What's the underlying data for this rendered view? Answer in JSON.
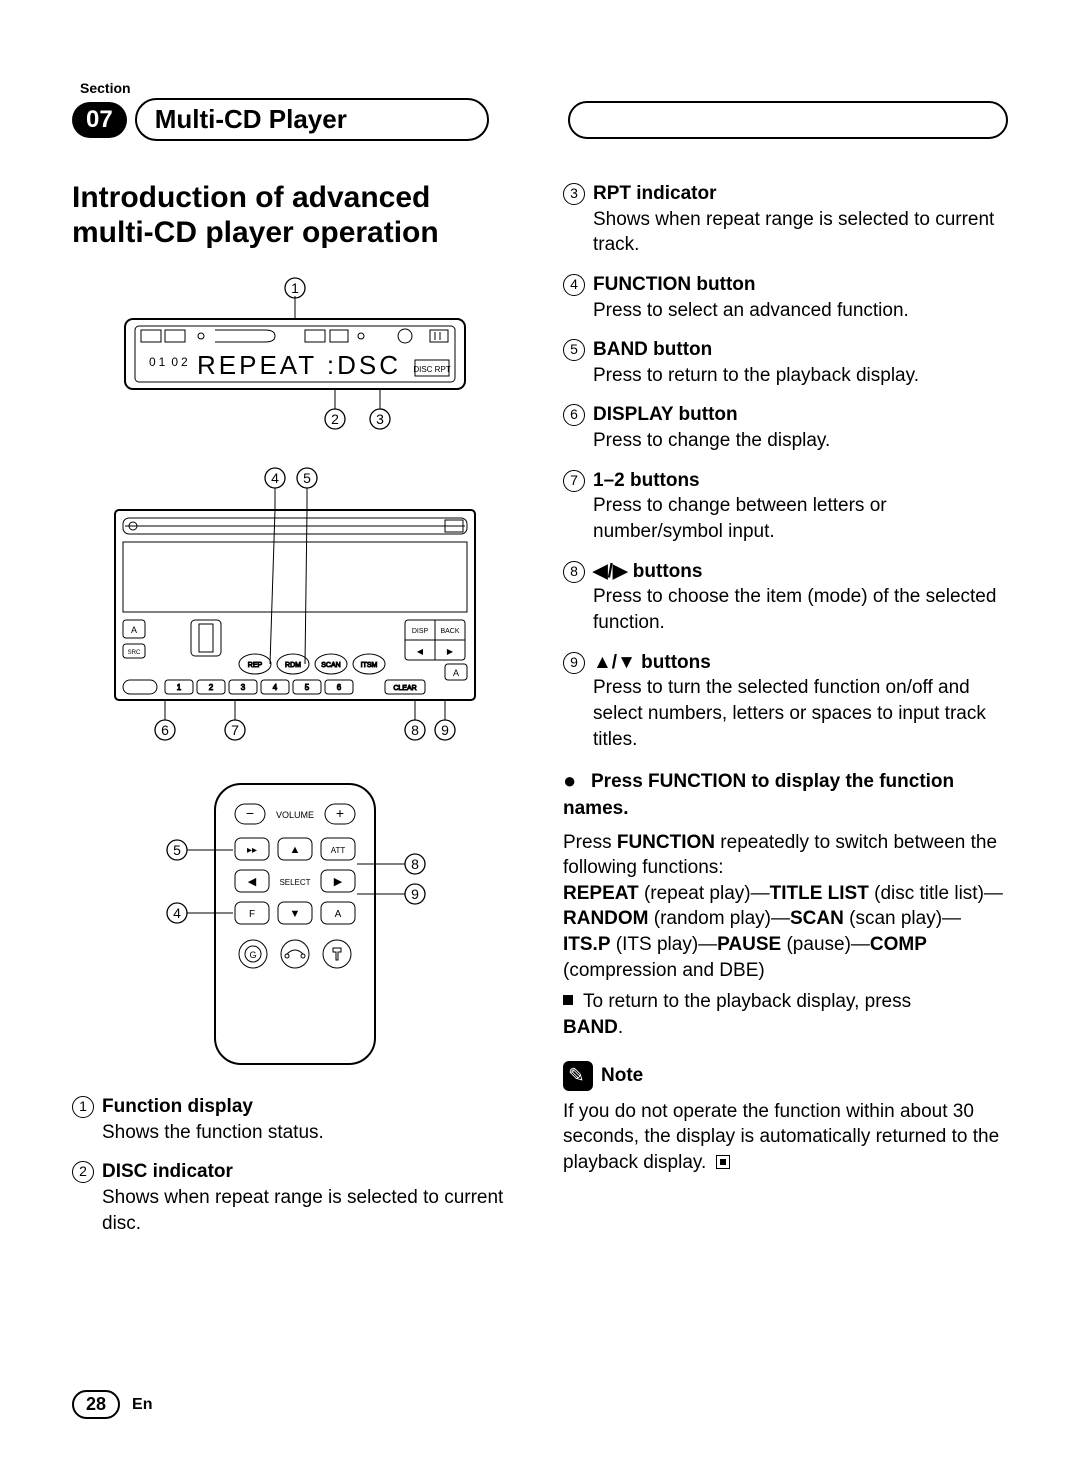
{
  "header": {
    "section_label": "Section",
    "section_number": "07",
    "chapter_title": "Multi-CD Player"
  },
  "left": {
    "heading": "Introduction of advanced multi-CD player operation",
    "fig1": {
      "display_text": "REPEAT  :DSC",
      "callouts": {
        "c1": "1",
        "c2": "2",
        "c3": "3"
      }
    },
    "fig2": {
      "callouts": {
        "c4": "4",
        "c5": "5",
        "c6": "6",
        "c7": "7",
        "c8": "8",
        "c9": "9"
      },
      "labels": [
        "A",
        "SRC OFF",
        "REP",
        "RDM",
        "SCAN",
        "ITSM",
        "1",
        "2",
        "3",
        "4",
        "5",
        "6",
        "CLEAR",
        "DISP",
        "BACK",
        "A"
      ]
    },
    "fig3": {
      "callouts": {
        "c4": "4",
        "c5": "5",
        "c8": "8",
        "c9": "9"
      },
      "labels": [
        "VOLUME",
        "ATT",
        "SELECT",
        "F",
        "A",
        "G"
      ]
    },
    "items": [
      {
        "n": "1",
        "title": "Function display",
        "desc": "Shows the function status."
      },
      {
        "n": "2",
        "title": "DISC indicator",
        "desc": "Shows when repeat range is selected to current disc."
      }
    ]
  },
  "right": {
    "items": [
      {
        "n": "3",
        "title": "RPT indicator",
        "desc": "Shows when repeat range is selected to current track."
      },
      {
        "n": "4",
        "title": "FUNCTION button",
        "desc": "Press to select an advanced function."
      },
      {
        "n": "5",
        "title": "BAND button",
        "desc": "Press to return to the playback display."
      },
      {
        "n": "6",
        "title": "DISPLAY button",
        "desc": "Press to change the display."
      },
      {
        "n": "7",
        "title": "1–2 buttons",
        "desc": "Press to change between letters or number/symbol input."
      },
      {
        "n": "8",
        "title": "◀/▶ buttons",
        "desc": "Press to choose the item (mode) of the selected function."
      },
      {
        "n": "9",
        "title": "▲/▼ buttons",
        "desc": "Press to turn the selected function on/off and select numbers, letters or spaces to input track titles."
      }
    ],
    "instruction": {
      "title": "Press FUNCTION to display the function names.",
      "line1a": "Press ",
      "line1b": "FUNCTION",
      "line1c": " repeatedly to switch between the following functions:",
      "seq": [
        {
          "b": "REPEAT",
          "p": " (repeat play)—"
        },
        {
          "b": "TITLE LIST",
          "p": " (disc title list)—"
        },
        {
          "b": "RANDOM",
          "p": " (random play)—"
        },
        {
          "b": "SCAN",
          "p": " (scan play)—"
        },
        {
          "b": "ITS.P",
          "p": " (ITS play)—"
        },
        {
          "b": "PAUSE",
          "p": " (pause)—"
        },
        {
          "b": "COMP",
          "p": " (compression and DBE)"
        }
      ],
      "return_a": "To return to the playback display, press ",
      "return_b": "BAND",
      "return_c": "."
    },
    "note": {
      "label": "Note",
      "text": "If you do not operate the function within about 30 seconds, the display is automatically returned to the playback display."
    }
  },
  "footer": {
    "page": "28",
    "lang": "En"
  },
  "colors": {
    "text": "#000000",
    "bg": "#ffffff"
  }
}
